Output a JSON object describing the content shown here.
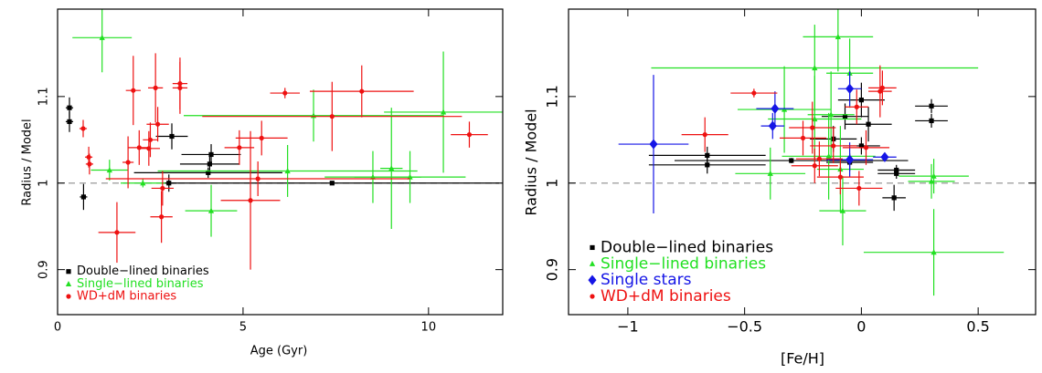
{
  "chart_data": [
    {
      "type": "scatter",
      "xlabel": "Age (Gyr)",
      "ylabel": "Radius / Model",
      "xlim": [
        0,
        12
      ],
      "ylim": [
        0.848,
        1.201
      ],
      "xticks": [
        0,
        5,
        10
      ],
      "yticks": [
        0.9,
        1,
        1.1
      ],
      "ref_line": 1,
      "legend": "lower left",
      "series": [
        {
          "name": "Double−lined binaries",
          "color": "#000000",
          "marker": "square",
          "x": [
            0.32,
            0.32,
            0.7,
            3.0,
            3.08,
            4.14,
            4.1,
            4.06,
            7.4
          ],
          "values": [
            1.087,
            1.071,
            0.984,
            1.0,
            1.054,
            1.033,
            1.022,
            1.012,
            1.0
          ],
          "xerr": [
            0.1,
            0.1,
            0.1,
            0.2,
            0.43,
            0.8,
            0.8,
            2.0,
            4.5
          ],
          "yerr": [
            0.012,
            0.012,
            0.015,
            0.01,
            0.015,
            0.012,
            0.01,
            0.006,
            0.002
          ]
        },
        {
          "name": "Single−lined binaries",
          "color": "#22e022",
          "marker": "triangle",
          "x": [
            1.2,
            1.4,
            2.3,
            4.14,
            6.2,
            6.9,
            8.5,
            9.0,
            9.5,
            10.4
          ],
          "values": [
            1.168,
            1.015,
            1.0,
            0.968,
            1.014,
            1.078,
            1.007,
            1.017,
            1.007,
            1.082
          ],
          "xerr": [
            0.8,
            0.5,
            0.6,
            0.7,
            3.5,
            3.5,
            1.3,
            0.3,
            1.5,
            1.6
          ],
          "yerr": [
            0.04,
            0.012,
            0.005,
            0.03,
            0.03,
            0.03,
            0.03,
            0.07,
            0.03,
            0.07
          ]
        },
        {
          "name": "WD+dM binaries",
          "color": "#ee1111",
          "marker": "circle",
          "x": [
            0.69,
            0.84,
            0.86,
            1.9,
            2.04,
            2.2,
            2.5,
            2.7,
            2.64,
            2.46,
            2.83,
            2.8,
            3.3,
            3.3,
            1.6,
            5.2,
            4.9,
            5.5,
            5.4,
            6.13,
            7.4,
            8.2,
            11.1
          ],
          "values": [
            1.063,
            1.03,
            1.022,
            1.024,
            1.107,
            1.041,
            1.05,
            1.068,
            1.11,
            1.04,
            0.994,
            0.961,
            1.11,
            1.115,
            0.943,
            0.98,
            1.041,
            1.052,
            1.005,
            1.104,
            1.077,
            1.106,
            1.056
          ],
          "xerr": [
            0.1,
            0.1,
            0.1,
            0.15,
            0.2,
            0.3,
            0.2,
            0.3,
            0.2,
            0.3,
            0.3,
            0.3,
            0.2,
            0.2,
            0.5,
            0.8,
            0.4,
            0.7,
            4.1,
            0.4,
            3.5,
            1.4,
            0.5
          ],
          "yerr": [
            0.01,
            0.012,
            0.012,
            0.03,
            0.04,
            0.02,
            0.02,
            0.02,
            0.04,
            0.02,
            0.02,
            0.03,
            0.03,
            0.03,
            0.035,
            0.08,
            0.02,
            0.02,
            0.02,
            0.006,
            0.04,
            0.03,
            0.015
          ]
        }
      ]
    },
    {
      "type": "scatter",
      "xlabel": "[Fe/H]",
      "ylabel": "Radius / Model",
      "xlim": [
        -1.254,
        0.746
      ],
      "ylim": [
        0.848,
        1.201
      ],
      "xticks": [
        {
          "value": -1,
          "label": "−1"
        },
        {
          "value": -0.5,
          "label": "−0.5"
        },
        0,
        0.5
      ],
      "yticks": [
        0.9,
        1,
        1.1
      ],
      "ref_line": 1,
      "legend": "lower left",
      "series": [
        {
          "name": "Double−lined binaries",
          "color": "#000000",
          "marker": "square",
          "x": [
            0.3,
            0.3,
            0.14,
            0.15,
            0.15,
            -0.66,
            -0.66,
            -0.3,
            0,
            -0.12,
            -0.07,
            0,
            0.03,
            -0.05
          ],
          "values": [
            1.089,
            1.072,
            0.983,
            1.011,
            1.015,
            1.032,
            1.021,
            1.026,
            1.096,
            1.051,
            1.077,
            1.043,
            1.068,
            1.024
          ],
          "xerr": [
            0.07,
            0.07,
            0.05,
            0.08,
            0.08,
            0.25,
            0.25,
            0.5,
            0.1,
            0.1,
            0.1,
            0.08,
            0.1,
            0.1
          ],
          "yerr": [
            0.008,
            0.008,
            0.015,
            0.006,
            0.006,
            0.01,
            0.01,
            0.003,
            0.02,
            0.015,
            0.015,
            0.01,
            0.02,
            0.01
          ]
        },
        {
          "name": "Single−lined binaries",
          "color": "#22e022",
          "marker": "triangle",
          "x": [
            -0.1,
            -0.2,
            -0.05,
            -0.33,
            -0.13,
            -0.2,
            -0.39,
            -0.08,
            0.31,
            0.3,
            0.31,
            -0.09,
            -0.14
          ],
          "values": [
            1.169,
            1.133,
            1.127,
            1.085,
            1.079,
            1.074,
            1.011,
            0.968,
            0.92,
            1.002,
            1.008,
            1.016,
            1.031
          ],
          "xerr": [
            0.15,
            0.7,
            0.1,
            0.2,
            0.1,
            0.2,
            0.15,
            0.1,
            0.3,
            0.1,
            0.15,
            0.1,
            0.2
          ],
          "yerr": [
            0.04,
            0.05,
            0.04,
            0.05,
            0.05,
            0.05,
            0.03,
            0.04,
            0.05,
            0.02,
            0.02,
            0.05,
            0.05
          ]
        },
        {
          "name": "Single stars",
          "color": "#1515e6",
          "marker": "diamond",
          "x": [
            -0.89,
            -0.37,
            -0.38,
            -0.05,
            0.1,
            -0.05
          ],
          "values": [
            1.045,
            1.086,
            1.066,
            1.109,
            1.03,
            1.027
          ],
          "xerr": [
            0.15,
            0.08,
            0.05,
            0.05,
            0.05,
            0.1
          ],
          "yerr": [
            0.08,
            0.02,
            0.015,
            0.02,
            0.005,
            0.02
          ]
        },
        {
          "name": "WD+dM binaries",
          "color": "#ee1111",
          "marker": "circle",
          "x": [
            -0.46,
            -0.67,
            -0.25,
            0.09,
            -0.02,
            0.08,
            -0.21,
            -0.18,
            -0.12,
            0.02,
            -0.01,
            -0.09,
            -0.2
          ],
          "values": [
            1.104,
            1.056,
            1.052,
            1.11,
            1.088,
            1.106,
            1.064,
            1.028,
            1.043,
            1.041,
            0.994,
            1.007,
            1.02
          ],
          "xerr": [
            0.1,
            0.1,
            0.1,
            0.06,
            0.05,
            0.05,
            0.1,
            0.1,
            0.1,
            0.1,
            0.1,
            0.1,
            0.1
          ],
          "yerr": [
            0.005,
            0.02,
            0.02,
            0.02,
            0.02,
            0.03,
            0.03,
            0.02,
            0.02,
            0.02,
            0.02,
            0.02,
            0.02
          ]
        }
      ]
    }
  ]
}
